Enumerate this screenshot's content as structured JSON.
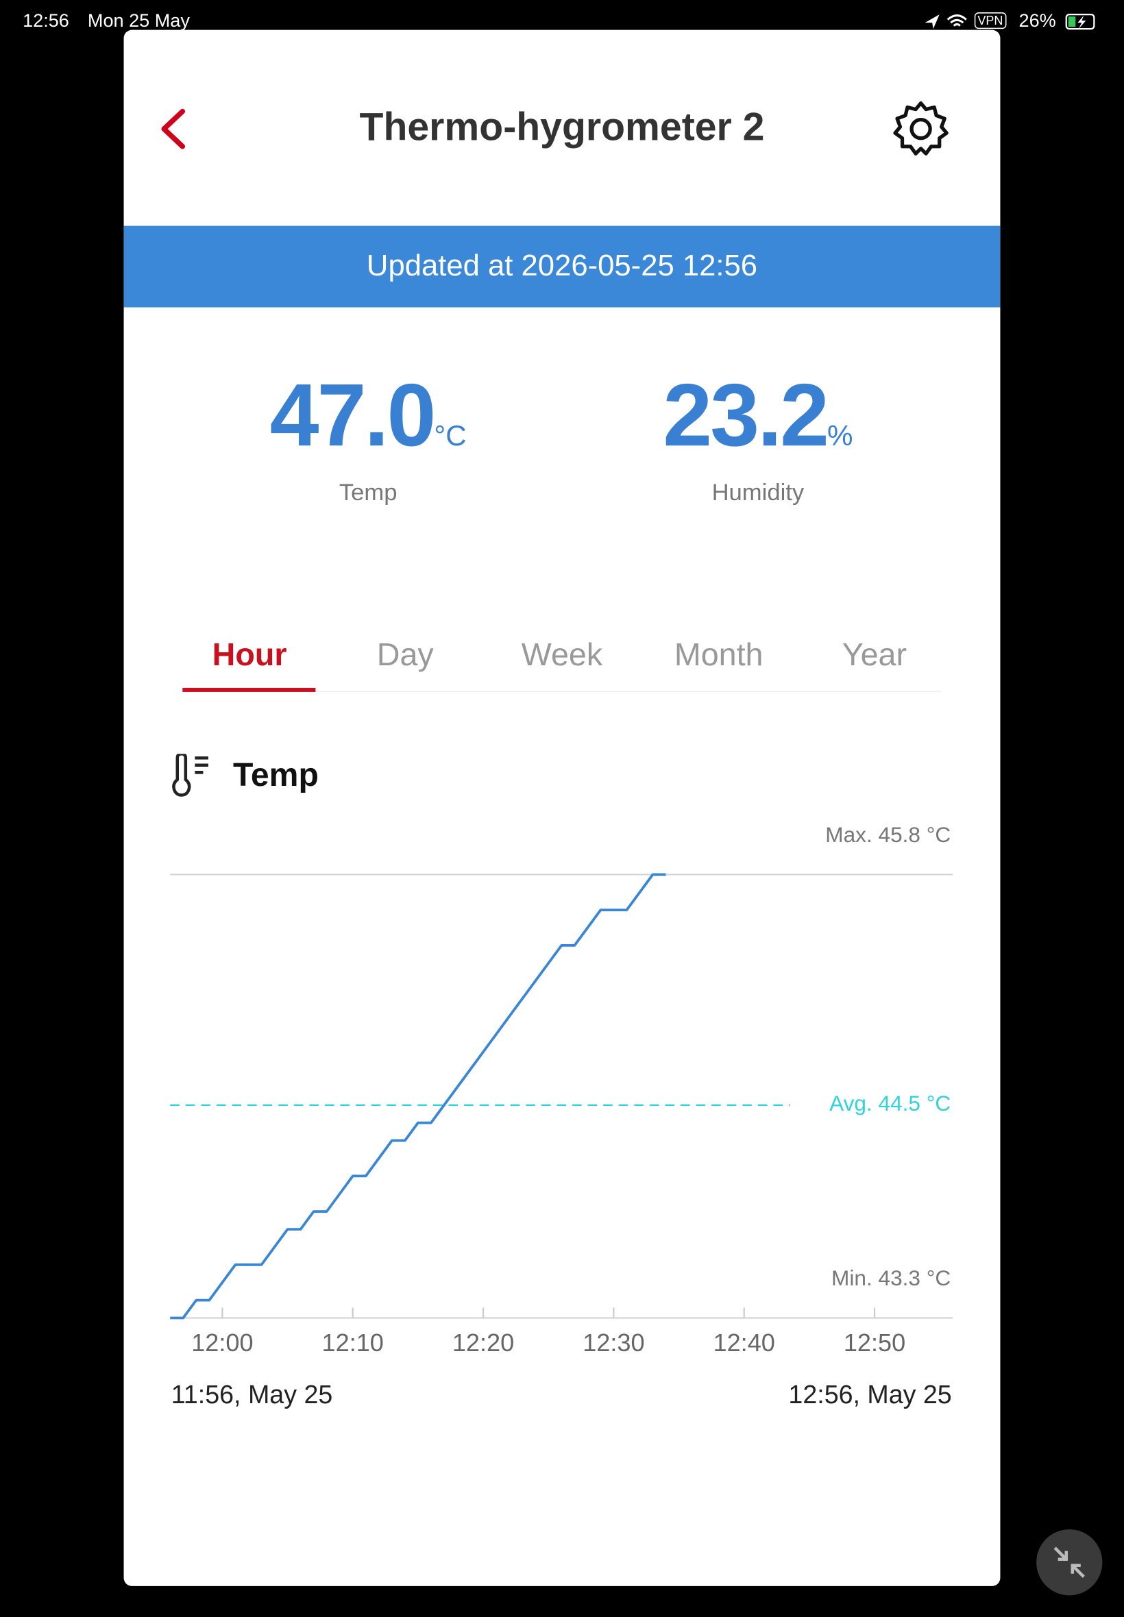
{
  "status_bar": {
    "time": "12:56",
    "date": "Mon 25 May",
    "vpn": "VPN",
    "battery": "26%"
  },
  "header": {
    "title": "Thermo-hygrometer 2"
  },
  "banner": {
    "text": "Updated at 2026-05-25 12:56"
  },
  "readings": [
    {
      "value": "47.0",
      "unit": "°C",
      "label": "Temp"
    },
    {
      "value": "23.2",
      "unit": "%",
      "label": "Humidity"
    }
  ],
  "tabs": [
    "Hour",
    "Day",
    "Week",
    "Month",
    "Year"
  ],
  "section": {
    "title": "Temp"
  },
  "chart_data": {
    "type": "line",
    "color": "#3a86d6",
    "x": [
      "11:56",
      "11:57",
      "11:58",
      "11:59",
      "12:00",
      "12:01",
      "12:02",
      "12:03",
      "12:04",
      "12:05",
      "12:06",
      "12:07",
      "12:08",
      "12:09",
      "12:10",
      "12:11",
      "12:12",
      "12:13",
      "12:14",
      "12:15",
      "12:16",
      "12:17",
      "12:18",
      "12:19",
      "12:20",
      "12:21",
      "12:22",
      "12:23",
      "12:24",
      "12:25",
      "12:26",
      "12:27",
      "12:28",
      "12:29",
      "12:30",
      "12:31",
      "12:32",
      "12:33",
      "12:34"
    ],
    "values": [
      43.3,
      43.3,
      43.4,
      43.4,
      43.5,
      43.6,
      43.6,
      43.6,
      43.7,
      43.8,
      43.8,
      43.9,
      43.9,
      44.0,
      44.1,
      44.1,
      44.2,
      44.3,
      44.3,
      44.4,
      44.4,
      44.5,
      44.6,
      44.7,
      44.8,
      44.9,
      45.0,
      45.1,
      45.2,
      45.3,
      45.4,
      45.4,
      45.5,
      45.6,
      45.6,
      45.6,
      45.7,
      45.8,
      45.8
    ],
    "xlim": [
      "11:56",
      "12:56"
    ],
    "xticks": [
      "12:00",
      "12:10",
      "12:20",
      "12:30",
      "12:40",
      "12:50"
    ],
    "ylim": [
      43.3,
      45.8
    ],
    "max": 45.8,
    "max_label": "Max. 45.8 °C",
    "avg": 44.5,
    "avg_label": "Avg. 44.5 °C",
    "avg_color": "#2fd3dc",
    "min": 43.3,
    "min_label": "Min. 43.3 °C",
    "start_label": "11:56, May 25",
    "end_label": "12:56, May 25"
  }
}
